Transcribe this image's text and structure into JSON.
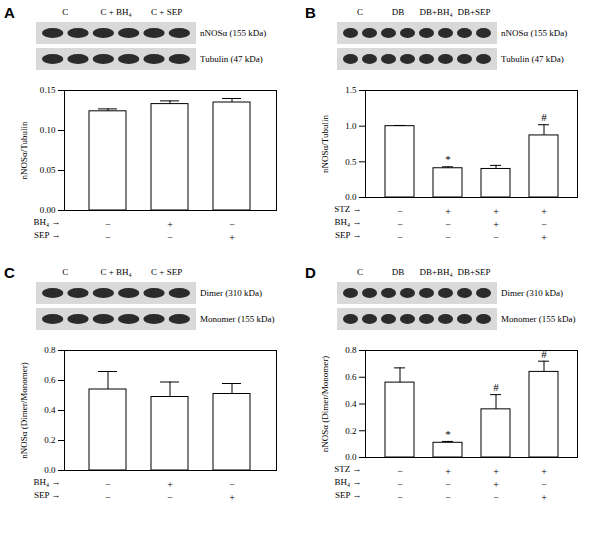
{
  "chart_data": [
    {
      "type": "bar",
      "title": "A",
      "blot": {
        "lanes": [
          "C",
          "C + BH₄",
          "C + SEP"
        ],
        "bands": [
          "nNOSα (155 kDa)",
          "Tubulin (47 kDa)"
        ]
      },
      "categories": [
        null,
        null,
        null
      ],
      "values": [
        0.124,
        0.133,
        0.135
      ],
      "errors": [
        0.003,
        0.004,
        0.005
      ],
      "annotations": [
        null,
        null,
        null
      ],
      "ylabel": "nNOSα/Tubulin",
      "ylim": [
        0,
        0.15
      ],
      "yticks": [
        {
          "value": 0,
          "label": "0.00"
        },
        {
          "value": 0.05,
          "label": "0.05"
        },
        {
          "value": 0.1,
          "label": "0.10"
        },
        {
          "value": 0.15,
          "label": "0.15"
        }
      ],
      "rows": [
        {
          "name": "BH₄ →",
          "signs": [
            "−",
            "+",
            "−"
          ]
        },
        {
          "name": "SEP →",
          "signs": [
            "−",
            "−",
            "+"
          ]
        }
      ],
      "color": "#ffffff"
    },
    {
      "type": "bar",
      "title": "B",
      "blot": {
        "lanes": [
          "C",
          "DB",
          "DB+BH₄",
          "DB+SEP"
        ],
        "bands": [
          "nNOSα (155 kDa)",
          "Tubulin (47 kDa)"
        ]
      },
      "categories": [
        null,
        null,
        null,
        null
      ],
      "values": [
        1.0,
        0.41,
        0.4,
        0.87
      ],
      "errors": [
        0.01,
        0.02,
        0.05,
        0.15
      ],
      "annotations": [
        null,
        "*",
        null,
        "#"
      ],
      "ylabel": "nNOSα/Tubulin",
      "ylim": [
        0,
        1.5
      ],
      "yticks": [
        {
          "value": 0,
          "label": "0.0"
        },
        {
          "value": 0.5,
          "label": "0.5"
        },
        {
          "value": 1,
          "label": "1.0"
        },
        {
          "value": 1.5,
          "label": "1.5"
        }
      ],
      "rows": [
        {
          "name": "STZ →",
          "signs": [
            "−",
            "+",
            "+",
            "+"
          ]
        },
        {
          "name": "BH₄ →",
          "signs": [
            "−",
            "−",
            "+",
            "−"
          ]
        },
        {
          "name": "SEP →",
          "signs": [
            "−",
            "−",
            "−",
            "+"
          ]
        }
      ],
      "color": "#ffffff"
    },
    {
      "type": "bar",
      "title": "C",
      "blot": {
        "lanes": [
          "C",
          "C + BH₄",
          "C + SEP"
        ],
        "bands": [
          "Dimer (310 kDa)",
          "Monomer (155 kDa)"
        ]
      },
      "categories": [
        null,
        null,
        null
      ],
      "values": [
        0.54,
        0.49,
        0.51
      ],
      "errors": [
        0.12,
        0.1,
        0.07
      ],
      "annotations": [
        null,
        null,
        null
      ],
      "ylabel": "nNOSα (Dimer/Monomer)",
      "ylim": [
        0,
        0.8
      ],
      "yticks": [
        {
          "value": 0,
          "label": "0.0"
        },
        {
          "value": 0.2,
          "label": "0.2"
        },
        {
          "value": 0.4,
          "label": "0.4"
        },
        {
          "value": 0.6,
          "label": "0.6"
        },
        {
          "value": 0.8,
          "label": "0.8"
        }
      ],
      "rows": [
        {
          "name": "BH₄ →",
          "signs": [
            "−",
            "+",
            "−"
          ]
        },
        {
          "name": "SEP →",
          "signs": [
            "−",
            "−",
            "+"
          ]
        }
      ],
      "color": "#ffffff"
    },
    {
      "type": "bar",
      "title": "D",
      "blot": {
        "lanes": [
          "C",
          "DB",
          "DB+BH₄",
          "DB+SEP"
        ],
        "bands": [
          "Dimer (310 kDa)",
          "Monomer (155 kDa)"
        ]
      },
      "categories": [
        null,
        null,
        null,
        null
      ],
      "values": [
        0.56,
        0.11,
        0.36,
        0.64
      ],
      "errors": [
        0.11,
        0.01,
        0.11,
        0.08
      ],
      "annotations": [
        null,
        "*",
        "#",
        "#"
      ],
      "ylabel": "nNOSα (Dimer/Monomer)",
      "ylim": [
        0,
        0.8
      ],
      "yticks": [
        {
          "value": 0,
          "label": "0.0"
        },
        {
          "value": 0.2,
          "label": "0.2"
        },
        {
          "value": 0.4,
          "label": "0.4"
        },
        {
          "value": 0.6,
          "label": "0.6"
        },
        {
          "value": 0.8,
          "label": "0.8"
        }
      ],
      "rows": [
        {
          "name": "STZ →",
          "signs": [
            "−",
            "+",
            "+",
            "+"
          ]
        },
        {
          "name": "BH₄ →",
          "signs": [
            "−",
            "−",
            "+",
            "−"
          ]
        },
        {
          "name": "SEP →",
          "signs": [
            "−",
            "−",
            "−",
            "+"
          ]
        }
      ],
      "color": "#ffffff"
    }
  ]
}
